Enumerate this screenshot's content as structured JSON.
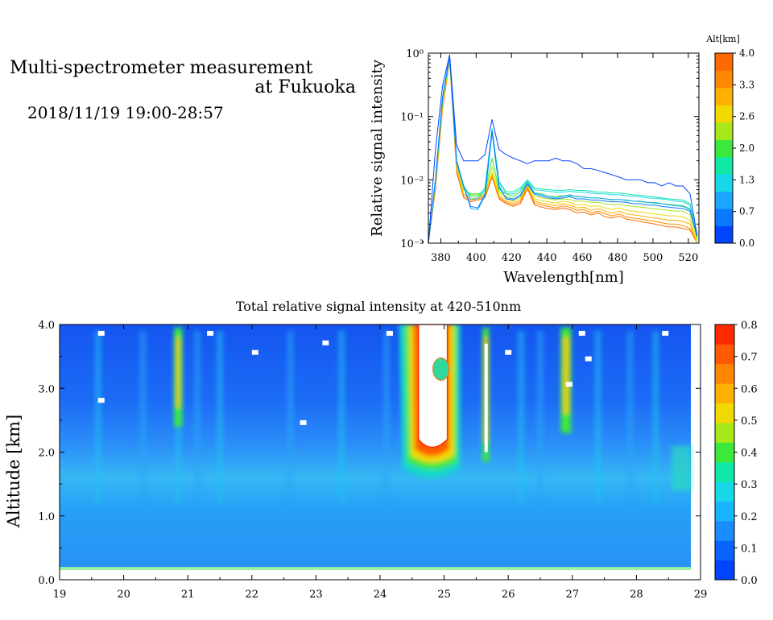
{
  "header": {
    "title_line1": "Multi-spectrometer measurement",
    "title_line2": "at Fukuoka",
    "datetime": "2018/11/19 19:00-28:57"
  },
  "chart_data": [
    {
      "type": "line",
      "xlabel": "Wavelength[nm]",
      "ylabel": "Relative signal intensity",
      "yscale": "log",
      "xlim": [
        373,
        526
      ],
      "ylim": [
        0.001,
        1
      ],
      "x_ticks": [
        "380",
        "400",
        "420",
        "440",
        "460",
        "480",
        "500",
        "520"
      ],
      "y_ticks": [
        "10⁰",
        "10⁻¹",
        "10⁻²",
        "10⁻³"
      ],
      "colorbar": {
        "title": "Alt[km]",
        "ticks": [
          "4.0",
          "3.3",
          "2.6",
          "2.0",
          "1.3",
          "0.7",
          "0.0"
        ],
        "colors": [
          "#0044ff",
          "#0a78ff",
          "#1aa8ff",
          "#16d8e8",
          "#10e8a8",
          "#3ce83c",
          "#a8e818",
          "#f0d800",
          "#ffb000",
          "#ff8800",
          "#ff6a00"
        ]
      },
      "x": [
        373,
        377,
        381,
        385,
        389,
        393,
        397,
        401,
        405,
        409,
        413,
        417,
        421,
        425,
        429,
        433,
        437,
        441,
        445,
        449,
        453,
        457,
        461,
        465,
        469,
        473,
        477,
        481,
        485,
        489,
        493,
        497,
        501,
        505,
        509,
        513,
        517,
        521,
        525
      ],
      "series": [
        {
          "color": "#0044ff",
          "values": [
            0.001,
            0.03,
            0.3,
            0.95,
            0.035,
            0.02,
            0.02,
            0.02,
            0.025,
            0.09,
            0.03,
            0.025,
            0.022,
            0.02,
            0.018,
            0.02,
            0.02,
            0.02,
            0.022,
            0.02,
            0.02,
            0.018,
            0.015,
            0.015,
            0.014,
            0.013,
            0.012,
            0.011,
            0.01,
            0.01,
            0.01,
            0.009,
            0.009,
            0.008,
            0.009,
            0.008,
            0.008,
            0.006,
            0.0013
          ]
        },
        {
          "color": "#0a78ff",
          "values": [
            0.001,
            0.01,
            0.2,
            0.9,
            0.02,
            0.008,
            0.0038,
            0.0036,
            0.006,
            0.06,
            0.008,
            0.005,
            0.0048,
            0.0055,
            0.0085,
            0.006,
            0.0055,
            0.0052,
            0.005,
            0.0052,
            0.0054,
            0.005,
            0.005,
            0.0048,
            0.0048,
            0.0046,
            0.0045,
            0.0045,
            0.0044,
            0.0042,
            0.0042,
            0.004,
            0.004,
            0.0038,
            0.0037,
            0.0036,
            0.0035,
            0.0032,
            0.0013
          ]
        },
        {
          "color": "#1aa8ff",
          "values": [
            0.001,
            0.01,
            0.2,
            0.9,
            0.018,
            0.008,
            0.0035,
            0.0034,
            0.0055,
            0.055,
            0.0075,
            0.0052,
            0.005,
            0.0058,
            0.009,
            0.0062,
            0.0058,
            0.0055,
            0.0052,
            0.0055,
            0.0058,
            0.0054,
            0.0054,
            0.0052,
            0.0052,
            0.005,
            0.0049,
            0.0049,
            0.0048,
            0.0046,
            0.0046,
            0.0044,
            0.0044,
            0.0042,
            0.004,
            0.0039,
            0.0038,
            0.0034,
            0.0013
          ]
        },
        {
          "color": "#16d8e8",
          "values": [
            0.001,
            0.01,
            0.2,
            0.88,
            0.02,
            0.008,
            0.005,
            0.005,
            0.007,
            0.06,
            0.009,
            0.006,
            0.006,
            0.007,
            0.0095,
            0.007,
            0.0068,
            0.0066,
            0.0064,
            0.0064,
            0.0066,
            0.0064,
            0.0064,
            0.0062,
            0.006,
            0.006,
            0.0058,
            0.0058,
            0.0056,
            0.0055,
            0.0054,
            0.0052,
            0.0051,
            0.005,
            0.0048,
            0.0046,
            0.0045,
            0.004,
            0.0013
          ]
        },
        {
          "color": "#10e8a8",
          "values": [
            0.001,
            0.01,
            0.2,
            0.86,
            0.02,
            0.008,
            0.0055,
            0.0055,
            0.0075,
            0.065,
            0.0095,
            0.0065,
            0.0065,
            0.0075,
            0.01,
            0.0075,
            0.0072,
            0.007,
            0.0068,
            0.0068,
            0.007,
            0.0068,
            0.0068,
            0.0066,
            0.0064,
            0.0064,
            0.0062,
            0.0062,
            0.006,
            0.0058,
            0.0057,
            0.0055,
            0.0054,
            0.0052,
            0.005,
            0.0049,
            0.0048,
            0.0042,
            0.0013
          ]
        },
        {
          "color": "#3ce83c",
          "values": [
            0.001,
            0.009,
            0.18,
            0.85,
            0.02,
            0.007,
            0.006,
            0.006,
            0.0065,
            0.022,
            0.007,
            0.006,
            0.0055,
            0.0065,
            0.0095,
            0.0062,
            0.006,
            0.0055,
            0.0055,
            0.0056,
            0.0056,
            0.0055,
            0.0053,
            0.0052,
            0.0052,
            0.005,
            0.0048,
            0.0049,
            0.0047,
            0.0046,
            0.0045,
            0.0044,
            0.0043,
            0.0042,
            0.0041,
            0.004,
            0.0039,
            0.0035,
            0.0012
          ]
        },
        {
          "color": "#a8e818",
          "values": [
            0.001,
            0.009,
            0.18,
            0.84,
            0.018,
            0.007,
            0.0058,
            0.0058,
            0.006,
            0.016,
            0.0065,
            0.0055,
            0.005,
            0.0058,
            0.0088,
            0.0056,
            0.0052,
            0.005,
            0.0048,
            0.005,
            0.0049,
            0.0046,
            0.0046,
            0.0044,
            0.0044,
            0.0042,
            0.004,
            0.0041,
            0.0039,
            0.0038,
            0.0037,
            0.0036,
            0.0035,
            0.0034,
            0.0033,
            0.0032,
            0.0032,
            0.0028,
            0.0011
          ]
        },
        {
          "color": "#f0d800",
          "values": [
            0.001,
            0.008,
            0.16,
            0.82,
            0.016,
            0.006,
            0.0055,
            0.0055,
            0.006,
            0.013,
            0.006,
            0.005,
            0.0046,
            0.0052,
            0.0082,
            0.005,
            0.0047,
            0.0045,
            0.0043,
            0.0046,
            0.0044,
            0.004,
            0.0041,
            0.0038,
            0.0039,
            0.0036,
            0.0034,
            0.0036,
            0.0033,
            0.0032,
            0.0031,
            0.003,
            0.0029,
            0.0028,
            0.0027,
            0.0027,
            0.0026,
            0.0023,
            0.001
          ]
        },
        {
          "color": "#ffb000",
          "values": [
            0.001,
            0.008,
            0.15,
            0.8,
            0.015,
            0.006,
            0.005,
            0.0052,
            0.0058,
            0.012,
            0.0055,
            0.0046,
            0.0043,
            0.0048,
            0.0078,
            0.0046,
            0.0043,
            0.0041,
            0.0039,
            0.0042,
            0.004,
            0.0036,
            0.0037,
            0.0033,
            0.0035,
            0.0032,
            0.003,
            0.0032,
            0.0029,
            0.0028,
            0.0027,
            0.0026,
            0.0025,
            0.0024,
            0.0023,
            0.0023,
            0.0022,
            0.002,
            0.001
          ]
        },
        {
          "color": "#ff8800",
          "values": [
            0.001,
            0.008,
            0.14,
            0.78,
            0.014,
            0.0055,
            0.0048,
            0.005,
            0.0055,
            0.012,
            0.0052,
            0.0044,
            0.004,
            0.0045,
            0.0075,
            0.0043,
            0.004,
            0.0038,
            0.0036,
            0.0039,
            0.0037,
            0.0033,
            0.0034,
            0.003,
            0.0032,
            0.0029,
            0.0027,
            0.0029,
            0.0026,
            0.0025,
            0.0024,
            0.0023,
            0.0022,
            0.0021,
            0.002,
            0.002,
            0.0019,
            0.0017,
            0.001
          ]
        },
        {
          "color": "#ff6a00",
          "values": [
            0.001,
            0.007,
            0.13,
            0.76,
            0.013,
            0.0052,
            0.0045,
            0.0048,
            0.0052,
            0.011,
            0.005,
            0.0042,
            0.0038,
            0.0042,
            0.0072,
            0.004,
            0.0037,
            0.0035,
            0.0034,
            0.0036,
            0.0034,
            0.003,
            0.0031,
            0.0028,
            0.003,
            0.0026,
            0.0025,
            0.0027,
            0.0024,
            0.0023,
            0.0022,
            0.0021,
            0.002,
            0.0019,
            0.0018,
            0.0018,
            0.0017,
            0.0016,
            0.001
          ]
        }
      ]
    },
    {
      "type": "heatmap",
      "title": "Total relative signal intensity at 420-510nm",
      "xlabel": "",
      "ylabel": "Altitude [km]",
      "xlim": [
        19,
        29
      ],
      "ylim": [
        0,
        4
      ],
      "x_ticks": [
        "19",
        "20",
        "21",
        "22",
        "23",
        "24",
        "25",
        "26",
        "27",
        "28",
        "29"
      ],
      "y_ticks": [
        "0.0",
        "1.0",
        "2.0",
        "3.0",
        "4.0"
      ],
      "colorbar": {
        "ticks": [
          "0.0",
          "0.1",
          "0.2",
          "0.3",
          "0.4",
          "0.5",
          "0.6",
          "0.7",
          "0.8"
        ],
        "colors": [
          "#0044ff",
          "#0a62ff",
          "#1a8cff",
          "#18b4ff",
          "#16d8e8",
          "#10e8a8",
          "#3ce83c",
          "#a8e818",
          "#f0d800",
          "#ffb000",
          "#ff8800",
          "#ff5a00",
          "#ff2a00"
        ]
      },
      "features": {
        "surface_band": [
          0.15,
          0.2
        ],
        "plumes": [
          {
            "t": 24.8,
            "width": 0.45,
            "bottom": 1.6,
            "top": 4.0,
            "saturated_above": 1.9
          },
          {
            "t": 25.65,
            "width": 0.06,
            "bottom": 1.9,
            "top": 4.0
          },
          {
            "t": 26.9,
            "width": 0.1,
            "bottom": 2.3,
            "top": 4.0
          },
          {
            "t": 20.85,
            "width": 0.08,
            "bottom": 2.3,
            "top": 4.0
          },
          {
            "t": 20.3,
            "width": 0.08,
            "bottom": 3.0,
            "top": 3.7
          }
        ]
      }
    }
  ]
}
